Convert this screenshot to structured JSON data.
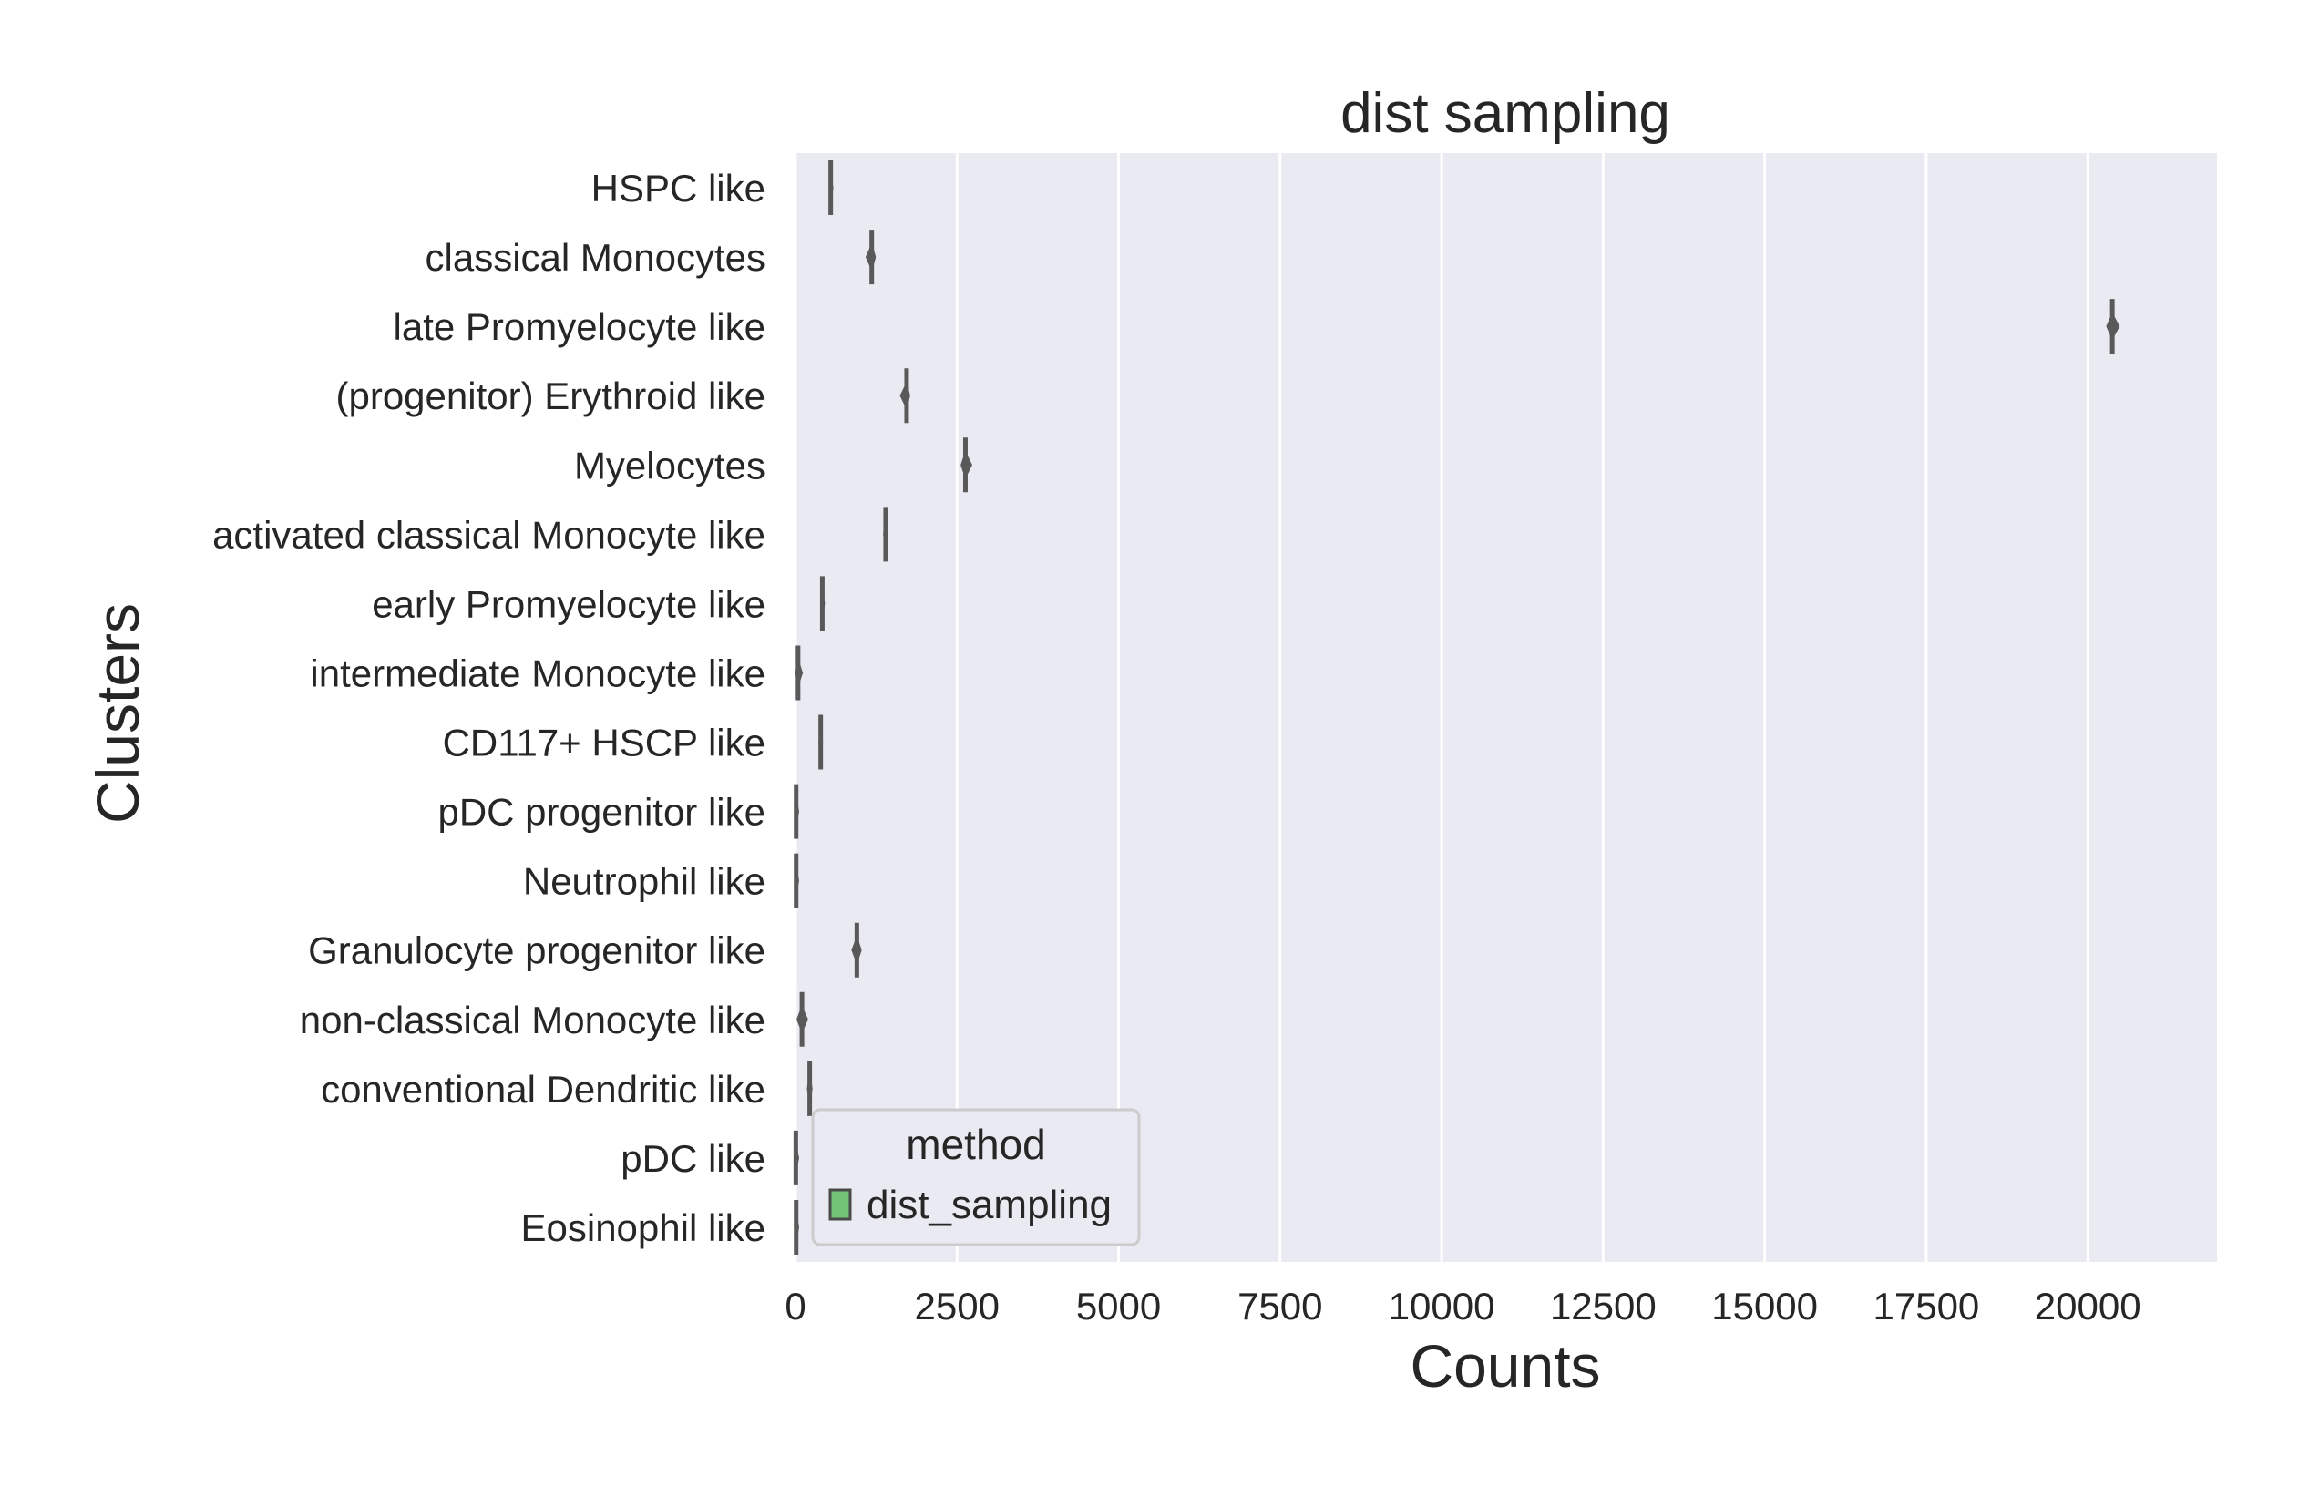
{
  "chart_data": {
    "type": "violin",
    "orientation": "horizontal",
    "title": "dist sampling",
    "xlabel": "Counts",
    "ylabel": "Clusters",
    "xlim": [
      0,
      22000
    ],
    "xticks": [
      0,
      2500,
      5000,
      7500,
      10000,
      12500,
      15000,
      17500,
      20000
    ],
    "xtick_labels": [
      "0",
      "2500",
      "5000",
      "7500",
      "10000",
      "12500",
      "15000",
      "17500",
      "20000"
    ],
    "grid": true,
    "legend": {
      "title": "method",
      "placement": "lower-left",
      "entries": [
        {
          "label": "dist_sampling",
          "color": "#74c476"
        }
      ]
    },
    "colors": {
      "background": "#eaeaf2",
      "grid": "#ffffff",
      "mark": "#595959"
    },
    "categories": [
      "HSPC like",
      "classical Monocytes",
      "late Promyelocyte like",
      "(progenitor) Erythroid like",
      "Myelocytes",
      "activated classical Monocyte like",
      "early Promyelocyte like",
      "intermediate Monocyte like",
      "CD117+ HSCP like",
      "pDC progenitor like",
      "Neutrophil like",
      "Granulocyte progenitor like",
      "non-classical Monocyte like",
      "conventional Dendritic like",
      "pDC like",
      "Eosinophil like"
    ],
    "series": [
      {
        "values": [
          {
            "min": 530,
            "max": 560,
            "center": 545
          },
          {
            "min": 1100,
            "max": 1230,
            "center": 1180
          },
          {
            "min": 20300,
            "max": 20480,
            "center": 20380
          },
          {
            "min": 1630,
            "max": 1760,
            "center": 1720
          },
          {
            "min": 2570,
            "max": 2720,
            "center": 2630
          },
          {
            "min": 1370,
            "max": 1420,
            "center": 1395
          },
          {
            "min": 400,
            "max": 430,
            "center": 415
          },
          {
            "min": 10,
            "max": 100,
            "center": 40
          },
          {
            "min": 370,
            "max": 410,
            "center": 390
          },
          {
            "min": 0,
            "max": 30,
            "center": 10
          },
          {
            "min": 0,
            "max": 30,
            "center": 10
          },
          {
            "min": 880,
            "max": 1010,
            "center": 950
          },
          {
            "min": 30,
            "max": 180,
            "center": 100
          },
          {
            "min": 190,
            "max": 250,
            "center": 220
          },
          {
            "min": 0,
            "max": 20,
            "center": 5
          },
          {
            "min": 0,
            "max": 30,
            "center": 10
          }
        ]
      }
    ]
  }
}
